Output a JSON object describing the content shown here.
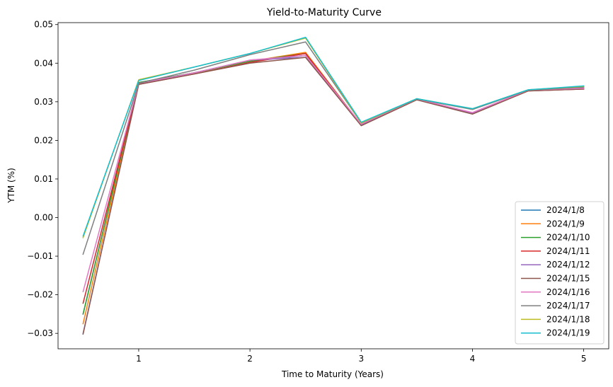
{
  "chart_data": {
    "type": "line",
    "title": "Yield-to-Maturity Curve",
    "xlabel": "Time to Maturity (Years)",
    "ylabel": "YTM (%)",
    "x": [
      0.5,
      1,
      1.5,
      2,
      2.5,
      3,
      3.5,
      4,
      4.5,
      5
    ],
    "xlim": [
      0.275,
      5.225
    ],
    "ylim": [
      -0.034,
      0.0505
    ],
    "x_ticks": [
      1,
      2,
      3,
      4,
      5
    ],
    "x_tick_labels": [
      "1",
      "2",
      "3",
      "4",
      "5"
    ],
    "y_ticks": [
      -0.03,
      -0.02,
      -0.01,
      0.0,
      0.01,
      0.02,
      0.03,
      0.04,
      0.05
    ],
    "y_tick_labels": [
      "−0.03",
      "−0.02",
      "−0.01",
      "0.00",
      "0.01",
      "0.02",
      "0.03",
      "0.04",
      "0.05"
    ],
    "grid": false,
    "legend_position": "lower-right",
    "series": [
      {
        "name": "2024/1/8",
        "color": "#1f77b4",
        "values": [
          -0.025,
          0.035,
          0.0375,
          0.0405,
          0.042,
          0.024,
          0.0307,
          0.027,
          0.033,
          0.0335
        ]
      },
      {
        "name": "2024/1/9",
        "color": "#ff7f0e",
        "values": [
          -0.0275,
          0.0348,
          0.0375,
          0.0405,
          0.0428,
          0.024,
          0.0307,
          0.027,
          0.033,
          0.0335
        ]
      },
      {
        "name": "2024/1/10",
        "color": "#2ca02c",
        "values": [
          -0.025,
          0.035,
          0.0375,
          0.0405,
          0.0425,
          0.024,
          0.0307,
          0.027,
          0.033,
          0.0335
        ]
      },
      {
        "name": "2024/1/11",
        "color": "#d62728",
        "values": [
          -0.0222,
          0.0345,
          0.0372,
          0.0402,
          0.0425,
          0.024,
          0.0307,
          0.027,
          0.0328,
          0.0333
        ]
      },
      {
        "name": "2024/1/12",
        "color": "#9467bd",
        "values": [
          -0.03,
          0.0345,
          0.0375,
          0.0408,
          0.0415,
          0.024,
          0.0307,
          0.027,
          0.033,
          0.0335
        ]
      },
      {
        "name": "2024/1/15",
        "color": "#8c564b",
        "values": [
          -0.0302,
          0.0345,
          0.0372,
          0.04,
          0.0415,
          0.0238,
          0.0305,
          0.0268,
          0.0328,
          0.0333
        ]
      },
      {
        "name": "2024/1/16",
        "color": "#e377c2",
        "values": [
          -0.0192,
          0.0348,
          0.0375,
          0.0408,
          0.042,
          0.0242,
          0.0307,
          0.0272,
          0.033,
          0.0335
        ]
      },
      {
        "name": "2024/1/17",
        "color": "#7f7f7f",
        "values": [
          -0.0095,
          0.0348,
          0.0382,
          0.0422,
          0.0455,
          0.0245,
          0.0307,
          0.028,
          0.033,
          0.0338
        ]
      },
      {
        "name": "2024/1/18",
        "color": "#bcbd22",
        "values": [
          -0.0052,
          0.0357,
          0.039,
          0.0425,
          0.0465,
          0.0245,
          0.0308,
          0.0282,
          0.0331,
          0.034
        ]
      },
      {
        "name": "2024/1/19",
        "color": "#17becf",
        "values": [
          -0.0048,
          0.0355,
          0.039,
          0.0425,
          0.0467,
          0.0247,
          0.0308,
          0.0282,
          0.0331,
          0.0341
        ]
      }
    ]
  }
}
